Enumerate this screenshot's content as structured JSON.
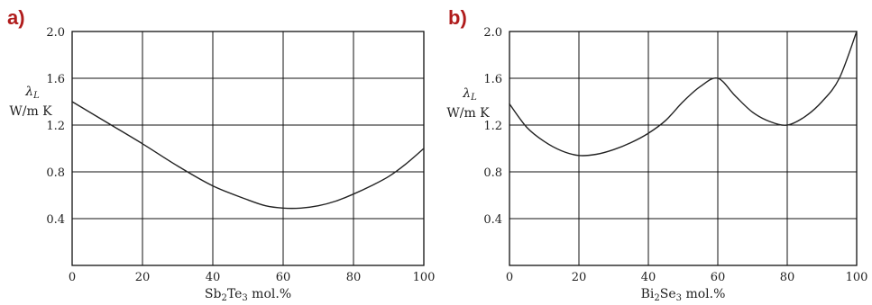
{
  "chart_data": [
    {
      "type": "line",
      "panel_label": "a)",
      "title": "",
      "xlabel_main": "Sb",
      "xlabel_sub1": "2",
      "xlabel_mid": "Te",
      "xlabel_sub2": "3",
      "xlabel_tail": " mol.%",
      "ylabel_symbol": "λ",
      "ylabel_symbol_sub": "L",
      "ylabel_unit": "W/m K",
      "xlim": [
        0,
        100
      ],
      "ylim": [
        0,
        2.0
      ],
      "x_ticks": [
        0,
        20,
        40,
        60,
        80,
        100
      ],
      "x_tick_labels": [
        "0",
        "20",
        "40",
        "60",
        "80",
        "100"
      ],
      "y_ticks": [
        0.4,
        0.8,
        1.2,
        1.6,
        2.0
      ],
      "y_tick_labels": [
        "0.4",
        "0.8",
        "1.2",
        "1.6",
        "2.0"
      ],
      "grid": true,
      "series": [
        {
          "x": [
            0,
            10,
            20,
            30,
            40,
            50,
            55,
            60,
            65,
            70,
            75,
            80,
            85,
            90,
            95,
            100
          ],
          "y": [
            1.4,
            1.22,
            1.04,
            0.85,
            0.68,
            0.56,
            0.51,
            0.49,
            0.49,
            0.51,
            0.55,
            0.61,
            0.68,
            0.76,
            0.87,
            1.0
          ]
        }
      ]
    },
    {
      "type": "line",
      "panel_label": "b)",
      "title": "",
      "xlabel_main": "Bi",
      "xlabel_sub1": "2",
      "xlabel_mid": "Se",
      "xlabel_sub2": "3",
      "xlabel_tail": " mol.%",
      "ylabel_symbol": "λ",
      "ylabel_symbol_sub": "L",
      "ylabel_unit": "W/m K",
      "xlim": [
        0,
        100
      ],
      "ylim": [
        0,
        2.0
      ],
      "x_ticks": [
        0,
        20,
        40,
        60,
        80,
        100
      ],
      "x_tick_labels": [
        "0",
        "20",
        "40",
        "60",
        "80",
        "100"
      ],
      "y_ticks": [
        0.4,
        0.8,
        1.2,
        1.6,
        2.0
      ],
      "y_tick_labels": [
        "0.4",
        "0.8",
        "1.2",
        "1.6",
        "2.0"
      ],
      "grid": true,
      "series": [
        {
          "x": [
            0,
            5,
            10,
            15,
            20,
            25,
            30,
            35,
            40,
            45,
            50,
            55,
            60,
            65,
            70,
            75,
            80,
            85,
            90,
            95,
            100
          ],
          "y": [
            1.38,
            1.18,
            1.06,
            0.98,
            0.94,
            0.95,
            0.99,
            1.05,
            1.13,
            1.24,
            1.4,
            1.53,
            1.6,
            1.45,
            1.31,
            1.23,
            1.2,
            1.27,
            1.4,
            1.6,
            2.0
          ]
        }
      ]
    }
  ]
}
